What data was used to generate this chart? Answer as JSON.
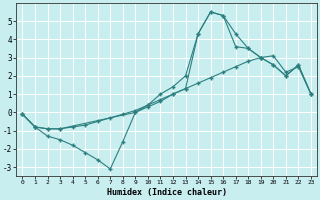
{
  "xlabel": "Humidex (Indice chaleur)",
  "bg_color": "#c8eef0",
  "grid_color": "#ffffff",
  "line_color": "#2d7f7f",
  "line1_x": [
    0,
    1,
    2,
    3,
    4,
    5,
    6,
    7,
    8,
    9,
    10,
    11,
    12,
    13,
    14,
    15,
    16,
    17,
    18,
    19,
    20,
    21,
    22,
    23
  ],
  "line1_y": [
    -0.1,
    -0.8,
    -1.3,
    -1.5,
    -1.8,
    -2.2,
    -2.6,
    -3.1,
    -1.6,
    0.0,
    0.4,
    1.0,
    1.4,
    2.0,
    4.3,
    5.5,
    5.3,
    3.6,
    3.5,
    3.0,
    2.6,
    2.0,
    2.6,
    1.0
  ],
  "line2_x": [
    0,
    1,
    2,
    3,
    4,
    5,
    6,
    7,
    8,
    9,
    10,
    11,
    12,
    13,
    14,
    15,
    16,
    17,
    18,
    19,
    20,
    21,
    22,
    23
  ],
  "line2_y": [
    -0.1,
    -0.8,
    -0.9,
    -0.9,
    -0.8,
    -0.7,
    -0.5,
    -0.3,
    -0.1,
    0.1,
    0.4,
    0.7,
    1.0,
    1.3,
    1.6,
    1.9,
    2.2,
    2.5,
    2.8,
    3.0,
    3.1,
    2.2,
    2.5,
    1.0
  ],
  "line3_x": [
    0,
    1,
    2,
    3,
    9,
    10,
    11,
    12,
    13,
    14,
    15,
    16,
    17,
    18,
    19,
    20,
    21,
    22,
    23
  ],
  "line3_y": [
    -0.1,
    -0.8,
    -0.9,
    -0.9,
    0.0,
    0.3,
    0.6,
    1.0,
    1.3,
    4.3,
    5.5,
    5.3,
    4.3,
    3.5,
    3.0,
    2.6,
    2.0,
    2.6,
    1.0
  ],
  "ylim": [
    -3.5,
    6.0
  ],
  "xlim": [
    -0.5,
    23.5
  ],
  "yticks": [
    -3,
    -2,
    -1,
    0,
    1,
    2,
    3,
    4,
    5
  ],
  "xticks": [
    0,
    1,
    2,
    3,
    4,
    5,
    6,
    7,
    8,
    9,
    10,
    11,
    12,
    13,
    14,
    15,
    16,
    17,
    18,
    19,
    20,
    21,
    22,
    23
  ]
}
